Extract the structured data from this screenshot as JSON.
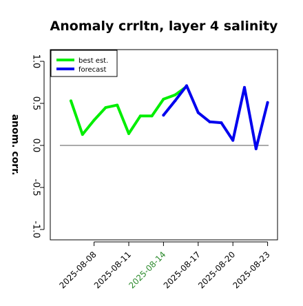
{
  "chart_data": {
    "type": "line",
    "title": "Anomaly crrltn, layer 4 salinity",
    "xlabel": "",
    "ylabel": "anom. corr.",
    "ylim": [
      -1.0,
      1.0
    ],
    "y_ticks": [
      "-1.0",
      "-0.5",
      "0.0",
      "0.5",
      "1.0"
    ],
    "x_dates": [
      "2025-08-06",
      "2025-08-07",
      "2025-08-08",
      "2025-08-09",
      "2025-08-10",
      "2025-08-11",
      "2025-08-12",
      "2025-08-13",
      "2025-08-14",
      "2025-08-15",
      "2025-08-16",
      "2025-08-17",
      "2025-08-18",
      "2025-08-19",
      "2025-08-20",
      "2025-08-21",
      "2025-08-22",
      "2025-08-23"
    ],
    "x_tick_labels": [
      {
        "label": "2025-08-08",
        "color": "#000000"
      },
      {
        "label": "2025-08-11",
        "color": "#000000"
      },
      {
        "label": "2025-08-14",
        "color": "#2e8b2e"
      },
      {
        "label": "2025-08-17",
        "color": "#000000"
      },
      {
        "label": "2025-08-20",
        "color": "#000000"
      },
      {
        "label": "2025-08-23",
        "color": "#000000"
      }
    ],
    "reference_line": 0.0,
    "grid": false,
    "legend_position": "top-left",
    "series": [
      {
        "name": "best est.",
        "color": "#00ee00",
        "x": [
          "2025-08-06",
          "2025-08-07",
          "2025-08-08",
          "2025-08-09",
          "2025-08-10",
          "2025-08-11",
          "2025-08-12",
          "2025-08-13",
          "2025-08-14",
          "2025-08-15",
          "2025-08-16"
        ],
        "values": [
          0.53,
          0.13,
          0.3,
          0.45,
          0.48,
          0.14,
          0.35,
          0.35,
          0.55,
          0.6,
          0.7
        ]
      },
      {
        "name": "forecast",
        "color": "#0000ee",
        "x": [
          "2025-08-14",
          "2025-08-15",
          "2025-08-16",
          "2025-08-17",
          "2025-08-18",
          "2025-08-19",
          "2025-08-20",
          "2025-08-21",
          "2025-08-22",
          "2025-08-23"
        ],
        "values": [
          0.36,
          0.53,
          0.71,
          0.39,
          0.28,
          0.27,
          0.06,
          0.69,
          -0.04,
          0.51
        ]
      }
    ]
  }
}
